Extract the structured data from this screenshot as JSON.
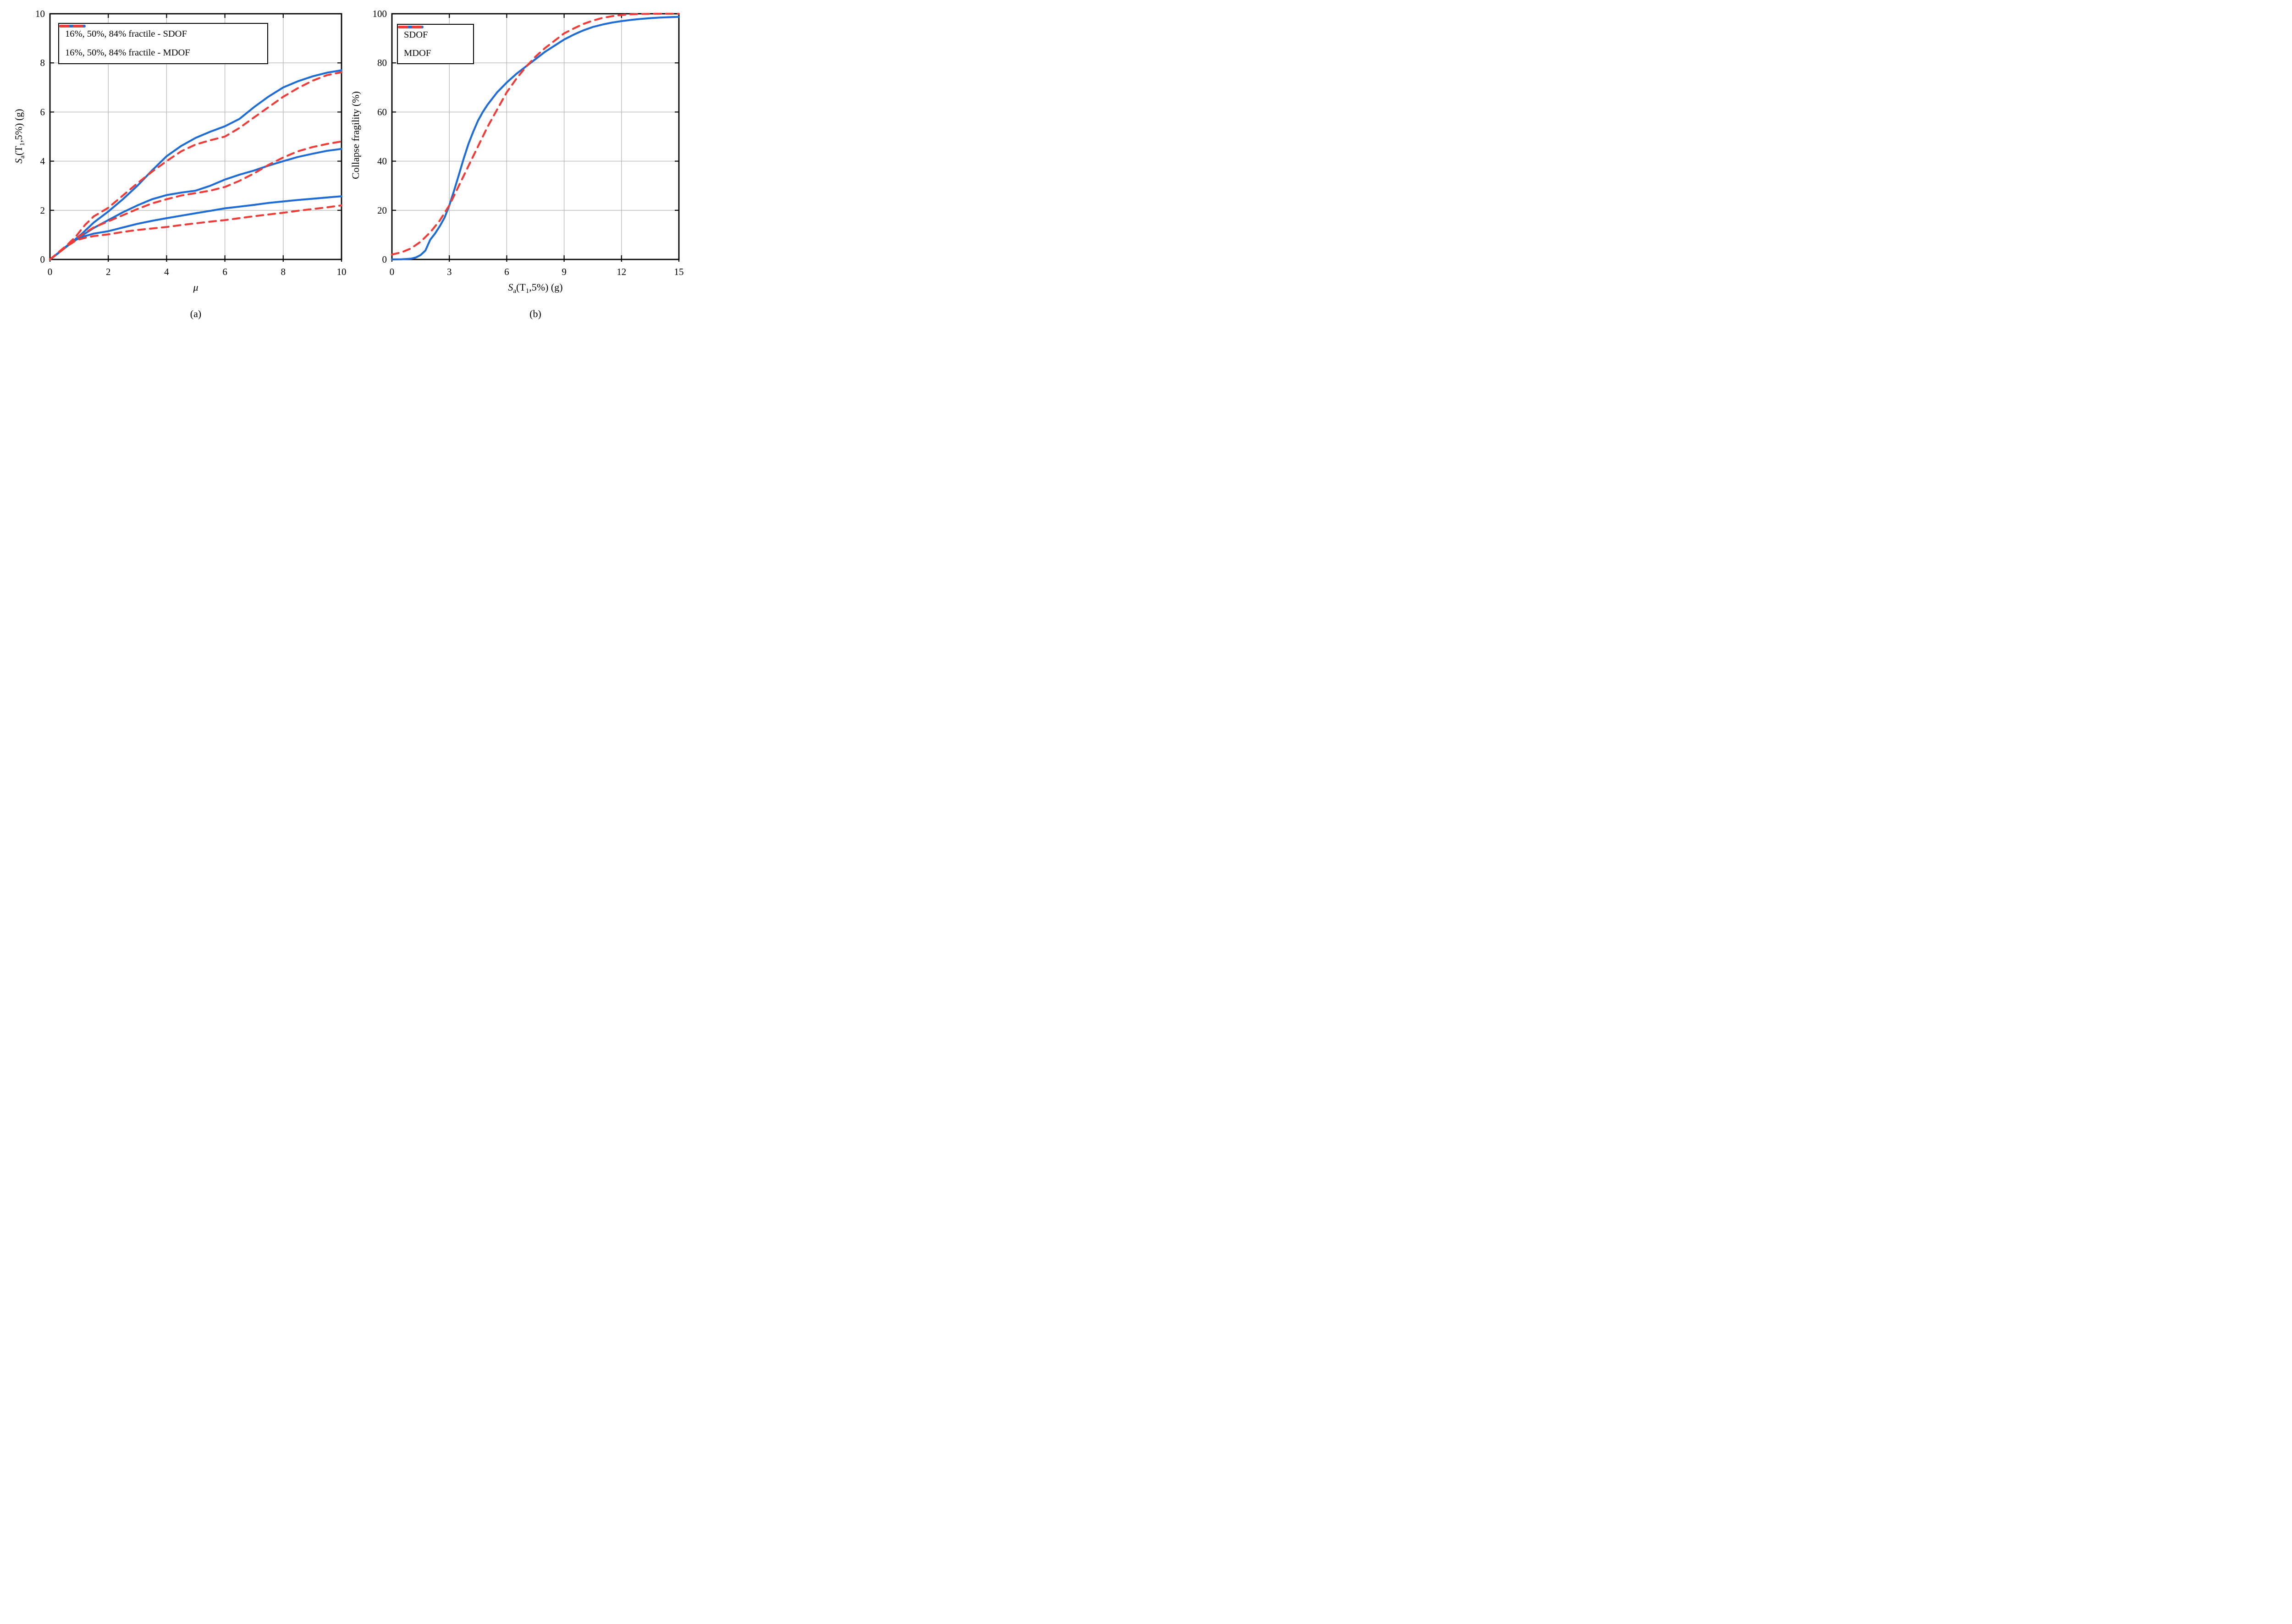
{
  "figure": {
    "background": "#ffffff",
    "colors": {
      "sdof": "#1e6cd4",
      "mdof": "#ee3c38",
      "grid": "#b9b9b9",
      "axis": "#000000"
    }
  },
  "chart_data": [
    {
      "id": "a",
      "type": "line",
      "caption": "(a)",
      "title": "",
      "xlabel_parts": [
        {
          "t": "μ",
          "i": true
        }
      ],
      "ylabel_parts": [
        {
          "t": "S",
          "i": true
        },
        {
          "t": "a",
          "sub": true
        },
        {
          "t": "(T"
        },
        {
          "t": "1",
          "sub": true
        },
        {
          "t": ",5%) (g)"
        }
      ],
      "xlabel_text": "mu (ductility)",
      "ylabel_text": "Sa(T1,5%) (g)",
      "xlim": [
        0,
        10
      ],
      "ylim": [
        0,
        10
      ],
      "xticks": [
        0,
        2,
        4,
        6,
        8,
        10
      ],
      "yticks": [
        0,
        2,
        4,
        6,
        8,
        10
      ],
      "grid": true,
      "legend": {
        "position": "upper-left",
        "entries": [
          {
            "label": "16%, 50%, 84% fractile - SDOF",
            "color": "#1e6cd4",
            "dash": false
          },
          {
            "label": "16%, 50%, 84% fractile - MDOF",
            "color": "#ee3c38",
            "dash": true
          }
        ]
      },
      "series": [
        {
          "name": "sdof-84-fractile",
          "color": "#1e6cd4",
          "dash": false,
          "points": [
            [
              0,
              0
            ],
            [
              0.3,
              0.28
            ],
            [
              0.6,
              0.57
            ],
            [
              0.9,
              0.85
            ],
            [
              1.1,
              1.05
            ],
            [
              1.5,
              1.5
            ],
            [
              2,
              1.95
            ],
            [
              2.5,
              2.45
            ],
            [
              3,
              3.0
            ],
            [
              3.5,
              3.62
            ],
            [
              4,
              4.2
            ],
            [
              4.5,
              4.62
            ],
            [
              5,
              4.95
            ],
            [
              5.5,
              5.2
            ],
            [
              6,
              5.42
            ],
            [
              6.5,
              5.72
            ],
            [
              7,
              6.2
            ],
            [
              7.5,
              6.63
            ],
            [
              8,
              7.0
            ],
            [
              8.5,
              7.25
            ],
            [
              9,
              7.45
            ],
            [
              9.5,
              7.6
            ],
            [
              10,
              7.7
            ]
          ]
        },
        {
          "name": "sdof-50-fractile",
          "color": "#1e6cd4",
          "dash": false,
          "points": [
            [
              0,
              0
            ],
            [
              0.3,
              0.27
            ],
            [
              0.6,
              0.55
            ],
            [
              0.9,
              0.82
            ],
            [
              1.2,
              1.05
            ],
            [
              1.5,
              1.28
            ],
            [
              2,
              1.6
            ],
            [
              2.5,
              1.92
            ],
            [
              3,
              2.2
            ],
            [
              3.5,
              2.45
            ],
            [
              4,
              2.62
            ],
            [
              4.5,
              2.72
            ],
            [
              5,
              2.8
            ],
            [
              5.5,
              3.0
            ],
            [
              6,
              3.25
            ],
            [
              6.5,
              3.45
            ],
            [
              7,
              3.62
            ],
            [
              7.5,
              3.82
            ],
            [
              8,
              4.0
            ],
            [
              8.5,
              4.17
            ],
            [
              9,
              4.3
            ],
            [
              9.5,
              4.42
            ],
            [
              10,
              4.5
            ]
          ]
        },
        {
          "name": "sdof-16-fractile",
          "color": "#1e6cd4",
          "dash": false,
          "points": [
            [
              0,
              0
            ],
            [
              0.3,
              0.27
            ],
            [
              0.6,
              0.55
            ],
            [
              0.9,
              0.8
            ],
            [
              1.2,
              0.95
            ],
            [
              1.5,
              1.05
            ],
            [
              2,
              1.15
            ],
            [
              2.5,
              1.3
            ],
            [
              3,
              1.45
            ],
            [
              3.5,
              1.57
            ],
            [
              4,
              1.68
            ],
            [
              4.5,
              1.78
            ],
            [
              5,
              1.88
            ],
            [
              5.5,
              1.98
            ],
            [
              6,
              2.08
            ],
            [
              6.5,
              2.15
            ],
            [
              7,
              2.22
            ],
            [
              7.5,
              2.3
            ],
            [
              8,
              2.36
            ],
            [
              8.5,
              2.42
            ],
            [
              9,
              2.47
            ],
            [
              9.5,
              2.52
            ],
            [
              10,
              2.57
            ]
          ]
        },
        {
          "name": "mdof-84-fractile",
          "color": "#ee3c38",
          "dash": true,
          "points": [
            [
              0,
              0
            ],
            [
              0.3,
              0.3
            ],
            [
              0.6,
              0.6
            ],
            [
              0.9,
              0.95
            ],
            [
              1.2,
              1.4
            ],
            [
              1.5,
              1.75
            ],
            [
              2,
              2.1
            ],
            [
              2.5,
              2.6
            ],
            [
              3,
              3.1
            ],
            [
              3.5,
              3.57
            ],
            [
              4,
              4.0
            ],
            [
              4.5,
              4.4
            ],
            [
              5,
              4.68
            ],
            [
              5.5,
              4.85
            ],
            [
              6,
              5.0
            ],
            [
              6.5,
              5.35
            ],
            [
              7,
              5.78
            ],
            [
              7.5,
              6.2
            ],
            [
              8,
              6.62
            ],
            [
              8.5,
              6.97
            ],
            [
              9,
              7.27
            ],
            [
              9.5,
              7.5
            ],
            [
              10,
              7.62
            ]
          ]
        },
        {
          "name": "mdof-50-fractile",
          "color": "#ee3c38",
          "dash": true,
          "points": [
            [
              0,
              0
            ],
            [
              0.3,
              0.27
            ],
            [
              0.6,
              0.55
            ],
            [
              0.9,
              0.85
            ],
            [
              1.2,
              1.08
            ],
            [
              1.5,
              1.3
            ],
            [
              2,
              1.55
            ],
            [
              2.5,
              1.8
            ],
            [
              3,
              2.05
            ],
            [
              3.5,
              2.28
            ],
            [
              4,
              2.45
            ],
            [
              4.5,
              2.6
            ],
            [
              5,
              2.7
            ],
            [
              5.5,
              2.8
            ],
            [
              6,
              2.95
            ],
            [
              6.5,
              3.2
            ],
            [
              7,
              3.5
            ],
            [
              7.5,
              3.85
            ],
            [
              8,
              4.15
            ],
            [
              8.5,
              4.4
            ],
            [
              9,
              4.57
            ],
            [
              9.5,
              4.7
            ],
            [
              10,
              4.8
            ]
          ]
        },
        {
          "name": "mdof-16-fractile",
          "color": "#ee3c38",
          "dash": true,
          "points": [
            [
              0,
              0
            ],
            [
              0.3,
              0.27
            ],
            [
              0.6,
              0.55
            ],
            [
              0.9,
              0.78
            ],
            [
              1.2,
              0.88
            ],
            [
              1.5,
              0.95
            ],
            [
              2,
              1.02
            ],
            [
              2.5,
              1.12
            ],
            [
              3,
              1.2
            ],
            [
              3.5,
              1.26
            ],
            [
              4,
              1.32
            ],
            [
              4.5,
              1.4
            ],
            [
              5,
              1.47
            ],
            [
              5.5,
              1.54
            ],
            [
              6,
              1.6
            ],
            [
              6.5,
              1.68
            ],
            [
              7,
              1.76
            ],
            [
              7.5,
              1.83
            ],
            [
              8,
              1.9
            ],
            [
              8.5,
              1.98
            ],
            [
              9,
              2.05
            ],
            [
              9.5,
              2.12
            ],
            [
              10,
              2.2
            ]
          ]
        }
      ]
    },
    {
      "id": "b",
      "type": "line",
      "caption": "(b)",
      "title": "",
      "xlabel_parts": [
        {
          "t": "S",
          "i": true
        },
        {
          "t": "a",
          "sub": true
        },
        {
          "t": "(T"
        },
        {
          "t": "1",
          "sub": true
        },
        {
          "t": ",5%) (g)"
        }
      ],
      "ylabel_parts": [
        {
          "t": "Collapse fragility (%)"
        }
      ],
      "xlabel_text": "Sa(T1,5%) (g)",
      "ylabel_text": "Collapse fragility (%)",
      "xlim": [
        0,
        15
      ],
      "ylim": [
        0,
        100
      ],
      "xticks": [
        0,
        3,
        6,
        9,
        12,
        15
      ],
      "yticks": [
        0,
        20,
        40,
        60,
        80,
        100
      ],
      "grid": true,
      "legend": {
        "position": "upper-left",
        "entries": [
          {
            "label": "SDOF",
            "color": "#1e6cd4",
            "dash": false
          },
          {
            "label": "MDOF",
            "color": "#ee3c38",
            "dash": true
          }
        ]
      },
      "series": [
        {
          "name": "sdof-fragility",
          "color": "#1e6cd4",
          "dash": false,
          "points": [
            [
              0,
              0
            ],
            [
              0.5,
              0.05
            ],
            [
              1,
              0.3
            ],
            [
              1.25,
              0.8
            ],
            [
              1.5,
              1.8
            ],
            [
              1.75,
              3.6
            ],
            [
              2,
              8
            ],
            [
              2.25,
              10.5
            ],
            [
              2.5,
              13.5
            ],
            [
              2.75,
              17
            ],
            [
              3,
              22
            ],
            [
              3.25,
              28
            ],
            [
              3.5,
              34.5
            ],
            [
              3.75,
              41
            ],
            [
              4,
              47
            ],
            [
              4.25,
              52
            ],
            [
              4.5,
              56.5
            ],
            [
              4.75,
              60
            ],
            [
              5,
              63
            ],
            [
              5.5,
              68
            ],
            [
              6,
              72
            ],
            [
              6.5,
              75.5
            ],
            [
              7,
              78.5
            ],
            [
              7.5,
              81.5
            ],
            [
              8,
              84.5
            ],
            [
              8.5,
              87
            ],
            [
              9,
              89.5
            ],
            [
              9.5,
              91.5
            ],
            [
              10,
              93.2
            ],
            [
              10.5,
              94.6
            ],
            [
              11,
              95.6
            ],
            [
              11.5,
              96.4
            ],
            [
              12,
              97
            ],
            [
              12.5,
              97.5
            ],
            [
              13,
              97.9
            ],
            [
              13.5,
              98.2
            ],
            [
              14,
              98.45
            ],
            [
              14.5,
              98.6
            ],
            [
              15,
              98.75
            ]
          ]
        },
        {
          "name": "mdof-fragility",
          "color": "#ee3c38",
          "dash": true,
          "points": [
            [
              0,
              2
            ],
            [
              0.5,
              2.9
            ],
            [
              1,
              4.5
            ],
            [
              1.5,
              7.2
            ],
            [
              2,
              11
            ],
            [
              2.5,
              15.8
            ],
            [
              3,
              22
            ],
            [
              3.5,
              30
            ],
            [
              4,
              38
            ],
            [
              4.5,
              46
            ],
            [
              5,
              54
            ],
            [
              5.5,
              61
            ],
            [
              6,
              68
            ],
            [
              6.5,
              73.5
            ],
            [
              7,
              78.3
            ],
            [
              7.5,
              82.5
            ],
            [
              8,
              86
            ],
            [
              8.5,
              89
            ],
            [
              9,
              92
            ],
            [
              9.5,
              94
            ],
            [
              10,
              95.8
            ],
            [
              10.5,
              97.2
            ],
            [
              11,
              98.3
            ],
            [
              11.5,
              99
            ],
            [
              12,
              99.5
            ],
            [
              12.5,
              99.75
            ],
            [
              13,
              99.9
            ],
            [
              14,
              100
            ],
            [
              15,
              100
            ]
          ]
        }
      ]
    }
  ]
}
